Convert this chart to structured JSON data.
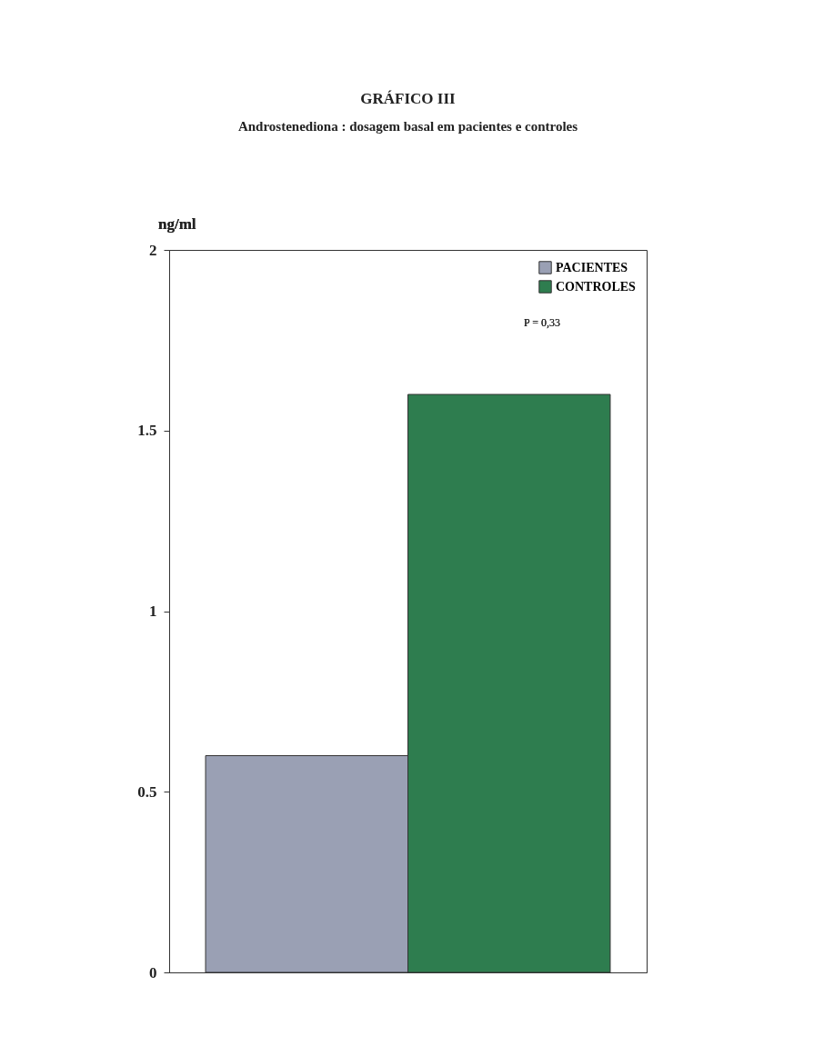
{
  "chart_data": {
    "type": "bar",
    "title": "GRÁFICO III",
    "subtitle": "Androstenediona : dosagem basal em pacientes e controles",
    "ylabel": "ng/ml",
    "categories": [
      null
    ],
    "series": [
      {
        "name": "PACIENTES",
        "color": "#9aa0b4",
        "values": [
          0.6
        ]
      },
      {
        "name": "CONTROLES",
        "color": "#2e7d4f",
        "values": [
          1.6
        ]
      }
    ],
    "ylim": [
      0,
      2
    ],
    "yticks": [
      0,
      0.5,
      1,
      1.5,
      2
    ],
    "grid": false,
    "legend": "top right",
    "tick_labels": "y",
    "annotations": [
      "P = 0,33"
    ]
  }
}
